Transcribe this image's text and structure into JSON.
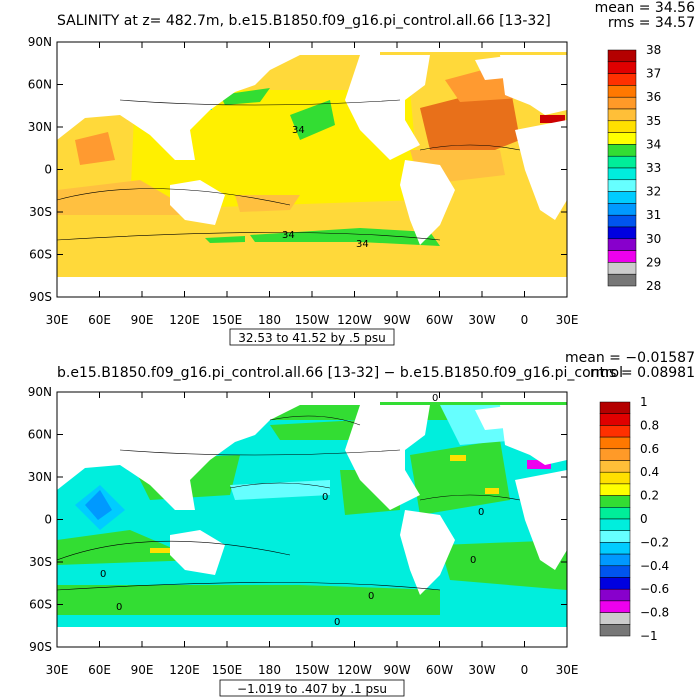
{
  "chart_data": [
    {
      "type": "heatmap",
      "title": "SALINITY at z= 482.7m, b.e15.B1850.f09_g16.pi_control.all.66 [13-32]",
      "stats": {
        "mean": "mean = 34.56",
        "rms": "rms = 34.57"
      },
      "range_label": "32.53 to 41.52 by .5 psu",
      "contour_labels": [
        "34",
        "34",
        "34"
      ],
      "x_ticks": [
        "30E",
        "60E",
        "90E",
        "120E",
        "150E",
        "180",
        "150W",
        "120W",
        "90W",
        "60W",
        "30W",
        "0",
        "30E"
      ],
      "y_ticks": [
        "90N",
        "60N",
        "30N",
        "0",
        "30S",
        "60S",
        "90S"
      ],
      "ylim": [
        -90,
        90
      ],
      "colorbar": {
        "levels": [
          "38",
          "37",
          "36",
          "35",
          "34",
          "33",
          "32",
          "31",
          "30",
          "29",
          "28"
        ],
        "colors": [
          "#b40000",
          "#e00000",
          "#ff3000",
          "#ff7800",
          "#ff9a28",
          "#ffbf38",
          "#ffe000",
          "#ffff00",
          "#33dd33",
          "#00ee99",
          "#00eedd",
          "#66ffff",
          "#00ccff",
          "#0099ff",
          "#0055ee",
          "#0000e0",
          "#8800cc",
          "#ee00ee",
          "#cccccc",
          "#777777"
        ]
      },
      "land_color": "#ffffff",
      "region_colors": {
        "base": "#ffd93a",
        "mid": "#fff000",
        "high": "#ffc040",
        "higher": "#ff9a30",
        "peak": "#e8701a",
        "low": "#33dd33",
        "lowest": "#00eedd",
        "extreme": "#cc0000"
      }
    },
    {
      "type": "heatmap",
      "title": "b.e15.B1850.f09_g16.pi_control.all.66 [13-32] − b.e15.B1850.f09_g16.pi_control",
      "stats": {
        "mean": "mean = −0.01587",
        "rms": "rms = 0.08981"
      },
      "range_label": "−1.019 to .407 by .1 psu",
      "contour_labels": [
        "0",
        "0",
        "0",
        "0",
        "0",
        "0",
        "0",
        "0"
      ],
      "x_ticks": [
        "30E",
        "60E",
        "90E",
        "120E",
        "150E",
        "180",
        "150W",
        "120W",
        "90W",
        "60W",
        "30W",
        "0",
        "30E"
      ],
      "y_ticks": [
        "90N",
        "60N",
        "30N",
        "0",
        "30S",
        "60S",
        "90S"
      ],
      "ylim": [
        -90,
        90
      ],
      "colorbar": {
        "levels": [
          "1",
          "0.8",
          "0.6",
          "0.4",
          "0.2",
          "0",
          "−0.2",
          "−0.4",
          "−0.6",
          "−0.8",
          "−1"
        ],
        "colors": [
          "#b40000",
          "#e00000",
          "#ff3000",
          "#ff7800",
          "#ff9a28",
          "#ffbf38",
          "#ffe000",
          "#ffff00",
          "#33dd33",
          "#00ee99",
          "#00eedd",
          "#66ffff",
          "#00ccff",
          "#0099ff",
          "#0055ee",
          "#0000e0",
          "#8800cc",
          "#ee00ee",
          "#cccccc",
          "#777777"
        ]
      },
      "land_color": "#ffffff",
      "region_colors": {
        "base": "#00eedd",
        "pos": "#33dd33",
        "posmore": "#ffe000",
        "neg": "#66ffff",
        "negmore": "#00ccff",
        "negmost": "#0099ff",
        "extreme": "#ee00ee"
      }
    }
  ]
}
